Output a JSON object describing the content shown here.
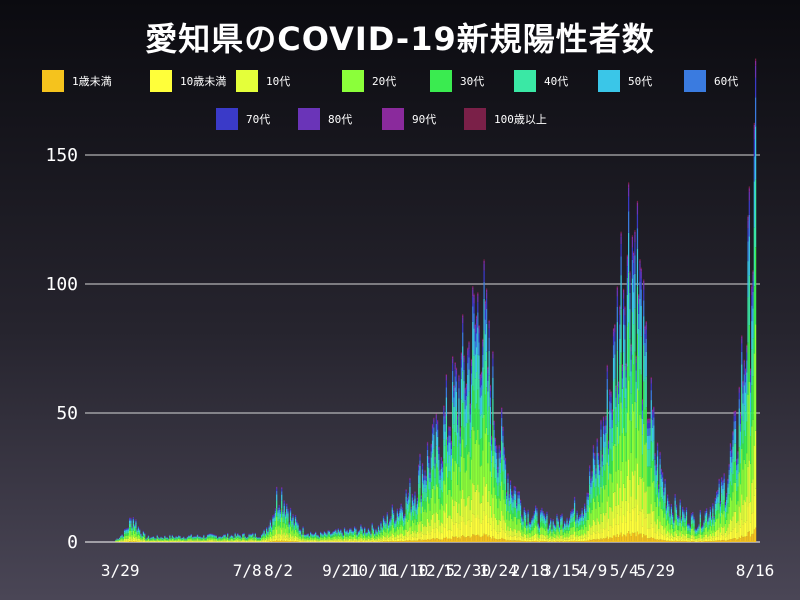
{
  "title": "愛知県のCOVID-19新規陽性者数",
  "chart_data": {
    "type": "bar",
    "stacked": true,
    "title": "愛知県のCOVID-19新規陽性者数",
    "xlabel": "",
    "ylabel": "",
    "ylim": [
      0,
      150
    ],
    "y_ticks_labels": [
      "0",
      "50",
      "100",
      "150"
    ],
    "x_tick_labels": [
      "3/29",
      "7/8",
      "8/2",
      "9/21",
      "10/16",
      "11/10",
      "12/5",
      "12/30",
      "1/24",
      "2/18",
      "3/15",
      "4/9",
      "5/4",
      "5/29",
      "8/16"
    ],
    "grid": true,
    "legend_position": "top",
    "series": [
      {
        "name": "1歳未満",
        "color": "#f5c31d"
      },
      {
        "name": "10歳未満",
        "color": "#ffff3a"
      },
      {
        "name": "10代",
        "color": "#e4ff3a"
      },
      {
        "name": "20代",
        "color": "#8bff3a"
      },
      {
        "name": "30代",
        "color": "#3aeb50"
      },
      {
        "name": "40代",
        "color": "#3ae8a5"
      },
      {
        "name": "50代",
        "color": "#3ac6e8"
      },
      {
        "name": "60代",
        "color": "#3a7be0"
      },
      {
        "name": "70代",
        "color": "#3a3ac8"
      },
      {
        "name": "80代",
        "color": "#6a34b8"
      },
      {
        "name": "90代",
        "color": "#8a2a9c"
      },
      {
        "name": "100歳以上",
        "color": "#7a2048"
      }
    ],
    "daily_totals_estimated": [
      {
        "x": "2020-03-25",
        "y": 1
      },
      {
        "x": "2020-04-01",
        "y": 4
      },
      {
        "x": "2020-04-05",
        "y": 8
      },
      {
        "x": "2020-04-08",
        "y": 10
      },
      {
        "x": "2020-04-12",
        "y": 6
      },
      {
        "x": "2020-04-18",
        "y": 2
      },
      {
        "x": "2020-07-20",
        "y": 3
      },
      {
        "x": "2020-07-27",
        "y": 10
      },
      {
        "x": "2020-07-31",
        "y": 18
      },
      {
        "x": "2020-08-03",
        "y": 21
      },
      {
        "x": "2020-08-07",
        "y": 17
      },
      {
        "x": "2020-08-12",
        "y": 10
      },
      {
        "x": "2020-08-20",
        "y": 5
      },
      {
        "x": "2020-09-01",
        "y": 3
      },
      {
        "x": "2020-10-20",
        "y": 6
      },
      {
        "x": "2020-11-05",
        "y": 14
      },
      {
        "x": "2020-11-18",
        "y": 22
      },
      {
        "x": "2020-11-25",
        "y": 32
      },
      {
        "x": "2020-12-05",
        "y": 38
      },
      {
        "x": "2020-12-15",
        "y": 52
      },
      {
        "x": "2020-12-25",
        "y": 65
      },
      {
        "x": "2021-01-05",
        "y": 85
      },
      {
        "x": "2021-01-09",
        "y": 98
      },
      {
        "x": "2021-01-14",
        "y": 76
      },
      {
        "x": "2021-01-22",
        "y": 48
      },
      {
        "x": "2021-02-01",
        "y": 26
      },
      {
        "x": "2021-02-15",
        "y": 12
      },
      {
        "x": "2021-03-10",
        "y": 8
      },
      {
        "x": "2021-04-01",
        "y": 16
      },
      {
        "x": "2021-04-15",
        "y": 40
      },
      {
        "x": "2021-04-25",
        "y": 70
      },
      {
        "x": "2021-05-01",
        "y": 103
      },
      {
        "x": "2021-05-08",
        "y": 125
      },
      {
        "x": "2021-05-13",
        "y": 118
      },
      {
        "x": "2021-05-20",
        "y": 70
      },
      {
        "x": "2021-05-29",
        "y": 34
      },
      {
        "x": "2021-06-10",
        "y": 15
      },
      {
        "x": "2021-07-01",
        "y": 8
      },
      {
        "x": "2021-07-20",
        "y": 20
      },
      {
        "x": "2021-08-01",
        "y": 42
      },
      {
        "x": "2021-08-10",
        "y": 98
      },
      {
        "x": "2021-08-16",
        "y": 140
      }
    ]
  }
}
